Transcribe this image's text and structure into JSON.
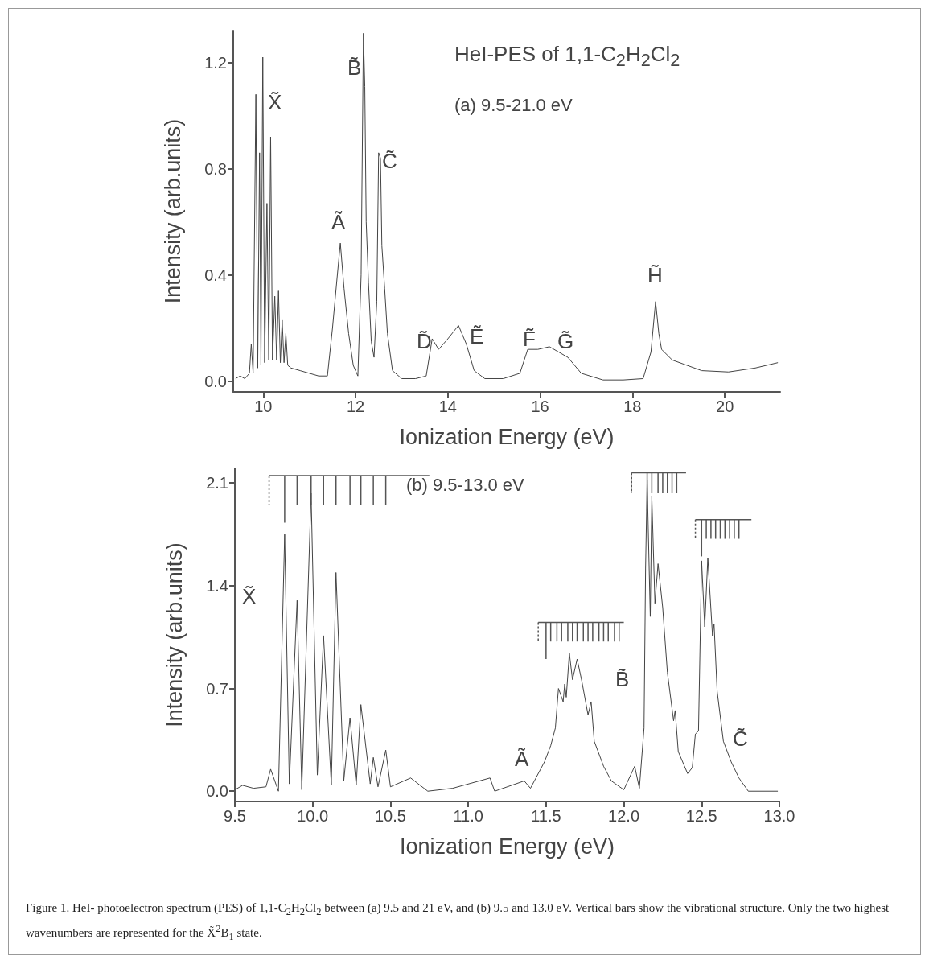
{
  "chart_data": [
    {
      "type": "line",
      "title": "HeI-PES of 1,1-C$_{2}$H$_{2}$Cl$_{2}$",
      "subtitle": "(a) 9.5-21.0 eV",
      "xlabel": "Ionization Energy (eV)",
      "ylabel": "Intensity (arb.units)",
      "color": "#444444",
      "line_style": "solid",
      "x": [
        9.4,
        9.5,
        9.6,
        9.7,
        9.74,
        9.78,
        9.84,
        9.88,
        9.92,
        9.95,
        9.99,
        10.03,
        10.08,
        10.12,
        10.16,
        10.2,
        10.25,
        10.29,
        10.33,
        10.37,
        10.41,
        10.45,
        10.49,
        10.53,
        10.6,
        10.8,
        11.0,
        11.2,
        11.39,
        11.5,
        11.6,
        11.67,
        11.75,
        11.85,
        11.95,
        12.05,
        12.12,
        12.17,
        12.2,
        12.23,
        12.28,
        12.34,
        12.4,
        12.46,
        12.5,
        12.54,
        12.57,
        12.63,
        12.69,
        12.8,
        13.0,
        13.3,
        13.53,
        13.66,
        13.8,
        14.0,
        14.23,
        14.4,
        14.57,
        14.8,
        15.2,
        15.56,
        15.73,
        15.95,
        16.2,
        16.6,
        16.89,
        17.36,
        17.8,
        18.23,
        18.4,
        18.5,
        18.57,
        18.63,
        18.86,
        19.5,
        20.08,
        20.66,
        21.15
      ],
      "values": [
        0.01,
        0.02,
        0.01,
        0.03,
        0.14,
        0.03,
        1.08,
        0.05,
        0.86,
        0.06,
        1.22,
        0.07,
        0.67,
        0.08,
        0.92,
        0.08,
        0.32,
        0.08,
        0.34,
        0.07,
        0.23,
        0.07,
        0.18,
        0.06,
        0.05,
        0.04,
        0.03,
        0.02,
        0.02,
        0.2,
        0.39,
        0.52,
        0.35,
        0.18,
        0.06,
        0.02,
        0.4,
        1.31,
        1.11,
        0.6,
        0.37,
        0.15,
        0.09,
        0.3,
        0.86,
        0.84,
        0.51,
        0.35,
        0.18,
        0.04,
        0.01,
        0.01,
        0.02,
        0.16,
        0.12,
        0.16,
        0.21,
        0.14,
        0.04,
        0.01,
        0.01,
        0.03,
        0.12,
        0.12,
        0.13,
        0.09,
        0.03,
        0.005,
        0.005,
        0.01,
        0.11,
        0.3,
        0.18,
        0.12,
        0.08,
        0.04,
        0.035,
        0.05,
        0.07
      ],
      "xlim": [
        9.35,
        21.2
      ],
      "ylim": [
        -0.04,
        1.32
      ],
      "xticks": [
        10,
        12,
        14,
        16,
        18,
        20
      ],
      "yticks": [
        {
          "value": 0,
          "label": "0.0"
        },
        0.4,
        0.8,
        1.2
      ],
      "annotations": [
        "X̃",
        "Ã",
        "B̃",
        "C̃",
        "D̃",
        "Ẽ",
        "F̃",
        "G̃",
        "H̃"
      ]
    },
    {
      "type": "line",
      "title": "(b) 9.5-13.0 eV",
      "xlabel": "Ionization Energy (eV)",
      "ylabel": "Intensity (arb.units)",
      "color": "#444444",
      "line_style": "solid",
      "x": [
        9.5,
        9.55,
        9.62,
        9.7,
        9.73,
        9.78,
        9.82,
        9.85,
        9.9,
        9.93,
        9.99,
        10.03,
        10.07,
        10.12,
        10.15,
        10.2,
        10.24,
        10.28,
        10.31,
        10.37,
        10.39,
        10.42,
        10.47,
        10.5,
        10.63,
        10.74,
        10.9,
        11.14,
        11.17,
        11.36,
        11.4,
        11.44,
        11.49,
        11.53,
        11.56,
        11.58,
        11.61,
        11.62,
        11.63,
        11.65,
        11.67,
        11.7,
        11.73,
        11.77,
        11.79,
        11.81,
        11.87,
        11.92,
        12.0,
        12.07,
        12.1,
        12.13,
        12.14,
        12.15,
        12.17,
        12.18,
        12.2,
        12.22,
        12.25,
        12.28,
        12.32,
        12.33,
        12.35,
        12.41,
        12.44,
        12.46,
        12.48,
        12.5,
        12.52,
        12.54,
        12.57,
        12.58,
        12.6,
        12.64,
        12.69,
        12.74,
        12.8,
        12.92,
        12.99
      ],
      "values": [
        0.01,
        0.04,
        0.02,
        0.03,
        0.15,
        0.0,
        1.75,
        0.05,
        1.3,
        0.01,
        2.03,
        0.11,
        1.06,
        0.04,
        1.49,
        0.07,
        0.5,
        0.04,
        0.59,
        0.05,
        0.23,
        0.03,
        0.28,
        0.03,
        0.09,
        0.0,
        0.02,
        0.09,
        0.0,
        0.07,
        0.02,
        0.1,
        0.2,
        0.31,
        0.43,
        0.7,
        0.61,
        0.73,
        0.64,
        0.94,
        0.76,
        0.9,
        0.75,
        0.52,
        0.61,
        0.34,
        0.17,
        0.07,
        0.01,
        0.17,
        0.02,
        0.43,
        1.52,
        2.12,
        1.19,
        2.01,
        1.28,
        1.55,
        1.25,
        0.81,
        0.48,
        0.55,
        0.27,
        0.12,
        0.16,
        0.39,
        0.41,
        1.57,
        1.12,
        1.59,
        1.06,
        1.14,
        0.68,
        0.34,
        0.2,
        0.09,
        0.0,
        0.0,
        0.0
      ],
      "xlim": [
        9.5,
        13.0
      ],
      "ylim": [
        -0.07,
        2.2
      ],
      "xticks": [
        9.5,
        {
          "value": 10,
          "label": "10.0"
        },
        10.5,
        {
          "value": 11,
          "label": "11.0"
        },
        11.5,
        {
          "value": 12,
          "label": "12.0"
        },
        12.5,
        {
          "value": 13,
          "label": "13.0"
        }
      ],
      "yticks": [
        {
          "value": 0,
          "label": "0.0"
        },
        0.7,
        1.4,
        2.1
      ],
      "annotations": [
        "X̃",
        "Ã",
        "B̃",
        "C̃",
        "Figure 1. HeI- photoelectron spectrum (PES) of 1,1-C$_{2}$H$_{2}$Cl$_{2}$ between (a) 9.5 and 21 eV, and (b) 9.5 and 13.0 eV. Vertical bars show the vibrational structure. Only the two highest wavenumbers are represented for the X̃$^{2}$B$_{1}$ state."
      ]
    }
  ]
}
